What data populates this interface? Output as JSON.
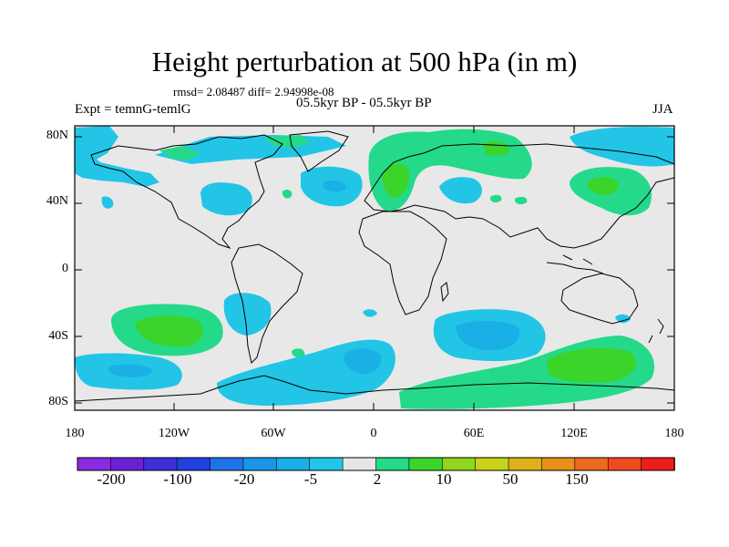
{
  "map": {
    "title": "Height perturbation at 500 hPa (in m)",
    "stats": "rmsd= 2.08487 diff= 2.94998e-08",
    "period": "05.5kyr BP - 05.5kyr BP",
    "experiment": "Expt = temnG-temlG",
    "season": "JJA",
    "background_color": "#e8e8e8",
    "lat_labels": [
      "80N",
      "40N",
      "0",
      "40S",
      "80S"
    ],
    "lon_labels": [
      "180",
      "120W",
      "60W",
      "0",
      "60E",
      "120E",
      "180"
    ]
  },
  "colorbar": {
    "colors": [
      "#8a2be2",
      "#6a22d6",
      "#3b2fd9",
      "#2140e0",
      "#1f73e8",
      "#1a96e8",
      "#1ab0e6",
      "#22c5e6",
      "#e6e6e6",
      "#25d98a",
      "#3bd42a",
      "#8fd61c",
      "#c8d21a",
      "#dcb21a",
      "#e8901c",
      "#ec6a1e",
      "#ee4a1e",
      "#ee1c1c"
    ],
    "labels": [
      "-200",
      "-100",
      "-20",
      "-5",
      "2",
      "10",
      "50",
      "150"
    ]
  }
}
